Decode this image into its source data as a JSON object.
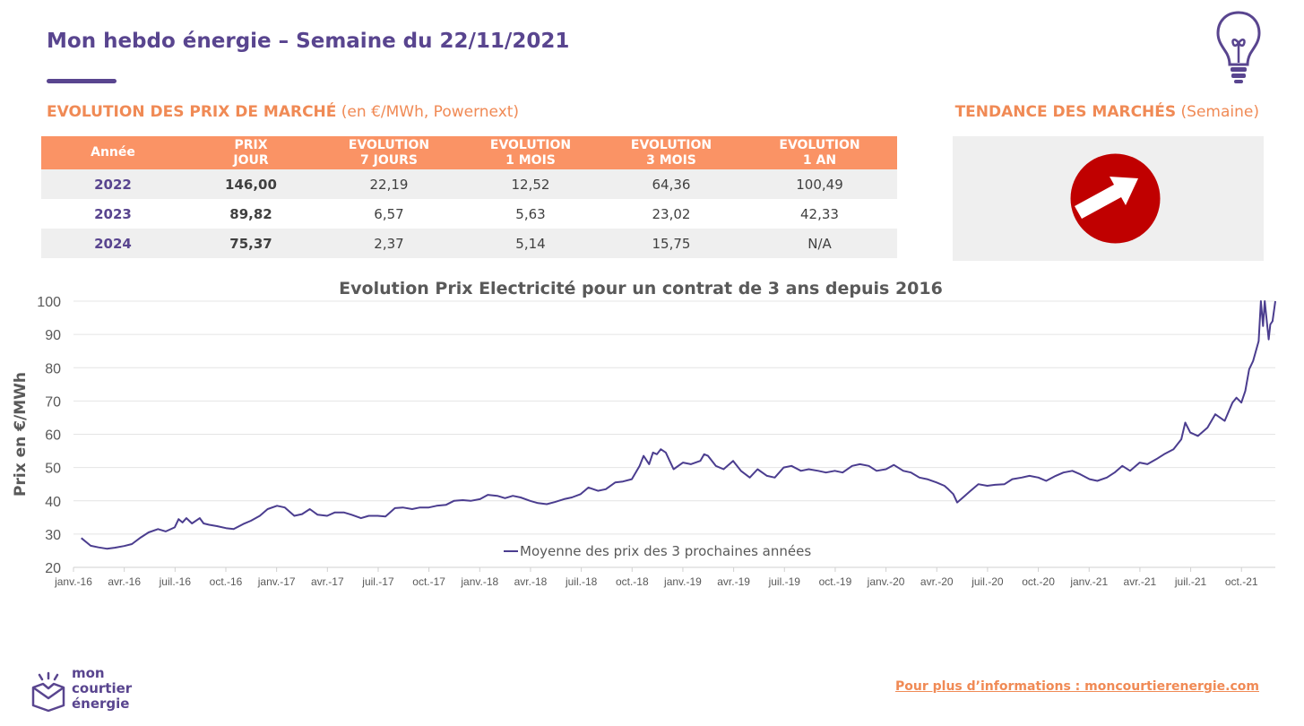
{
  "header": {
    "title": "Mon hebdo énergie – Semaine du 22/11/2021"
  },
  "prices_section": {
    "title": "EVOLUTION DES PRIX DE MARCHÉ",
    "subtitle": "(en €/MWh, Powernext)"
  },
  "trend_section": {
    "title": "TENDANCE DES MARCHÉS",
    "subtitle": "(Semaine)",
    "trend": "hausse",
    "icon": "arrow-up-right-icon",
    "icon_color": "#c00000"
  },
  "table": {
    "headers": [
      {
        "l1": "Année",
        "l2": ""
      },
      {
        "l1": "PRIX",
        "l2": "JOUR"
      },
      {
        "l1": "EVOLUTION",
        "l2": "7 JOURS"
      },
      {
        "l1": "EVOLUTION",
        "l2": "1 MOIS"
      },
      {
        "l1": "EVOLUTION",
        "l2": "3 MOIS"
      },
      {
        "l1": "EVOLUTION",
        "l2": "1 AN"
      }
    ],
    "rows": [
      [
        "2022",
        "146,00",
        "22,19",
        "12,52",
        "64,36",
        "100,49"
      ],
      [
        "2023",
        "89,82",
        "6,57",
        "5,63",
        "23,02",
        "42,33"
      ],
      [
        "2024",
        "75,37",
        "2,37",
        "5,14",
        "15,75",
        "N/A"
      ]
    ]
  },
  "footer": {
    "link_text": "Pour plus d’informations : moncourtierenergie.com"
  },
  "logo": {
    "line1": "mon",
    "line2": "courtier",
    "line3": "énergie"
  },
  "colors": {
    "brand_purple": "#59458f",
    "accent_orange": "#f08a55",
    "header_orange": "#fa9365",
    "line_purple": "#4b3d8f"
  },
  "chart_data": {
    "type": "line",
    "title": "Evolution Prix Electricité pour un contrat de 3 ans depuis 2016",
    "ylabel": "Prix en €/MWh",
    "xlabel": "",
    "ylim": [
      20,
      100
    ],
    "yticks": [
      20,
      30,
      40,
      50,
      60,
      70,
      80,
      90,
      100
    ],
    "grid": true,
    "legend": "bottom-center",
    "x_ticks": [
      "janv.-16",
      "avr.-16",
      "juil.-16",
      "oct.-16",
      "janv.-17",
      "avr.-17",
      "juil.-17",
      "oct.-17",
      "janv.-18",
      "avr.-18",
      "juil.-18",
      "oct.-18",
      "janv.-19",
      "avr.-19",
      "juil.-19",
      "oct.-19",
      "janv.-20",
      "avr.-20",
      "juil.-20",
      "oct.-20",
      "janv.-21",
      "avr.-21",
      "juil.-21",
      "oct.-21"
    ],
    "series": [
      {
        "name": "Moyenne des prix des 3 prochaines années",
        "color": "#4b3d8f",
        "points": [
          [
            "2016-01-15",
            28.8
          ],
          [
            "2016-02-01",
            26.5
          ],
          [
            "2016-02-15",
            26.0
          ],
          [
            "2016-03-01",
            25.6
          ],
          [
            "2016-03-15",
            25.9
          ],
          [
            "2016-04-01",
            26.4
          ],
          [
            "2016-04-15",
            27.0
          ],
          [
            "2016-05-01",
            29.0
          ],
          [
            "2016-05-15",
            30.5
          ],
          [
            "2016-06-01",
            31.5
          ],
          [
            "2016-06-15",
            30.8
          ],
          [
            "2016-07-01",
            32.0
          ],
          [
            "2016-07-08",
            34.5
          ],
          [
            "2016-07-15",
            33.5
          ],
          [
            "2016-07-22",
            34.8
          ],
          [
            "2016-08-01",
            33.2
          ],
          [
            "2016-08-15",
            34.8
          ],
          [
            "2016-08-22",
            33.2
          ],
          [
            "2016-09-01",
            32.8
          ],
          [
            "2016-09-15",
            32.4
          ],
          [
            "2016-10-01",
            31.8
          ],
          [
            "2016-10-15",
            31.5
          ],
          [
            "2016-11-01",
            33.0
          ],
          [
            "2016-11-15",
            34.0
          ],
          [
            "2016-12-01",
            35.5
          ],
          [
            "2016-12-15",
            37.5
          ],
          [
            "2017-01-01",
            38.5
          ],
          [
            "2017-01-15",
            38.0
          ],
          [
            "2017-02-01",
            35.5
          ],
          [
            "2017-02-15",
            36.0
          ],
          [
            "2017-03-01",
            37.5
          ],
          [
            "2017-03-15",
            35.8
          ],
          [
            "2017-04-01",
            35.5
          ],
          [
            "2017-04-15",
            36.5
          ],
          [
            "2017-05-01",
            36.5
          ],
          [
            "2017-05-15",
            35.8
          ],
          [
            "2017-06-01",
            34.8
          ],
          [
            "2017-06-15",
            35.5
          ],
          [
            "2017-07-01",
            35.5
          ],
          [
            "2017-07-15",
            35.3
          ],
          [
            "2017-08-01",
            37.8
          ],
          [
            "2017-08-15",
            38.0
          ],
          [
            "2017-09-01",
            37.5
          ],
          [
            "2017-09-15",
            38.0
          ],
          [
            "2017-10-01",
            38.0
          ],
          [
            "2017-10-15",
            38.5
          ],
          [
            "2017-11-01",
            38.8
          ],
          [
            "2017-11-15",
            40.0
          ],
          [
            "2017-12-01",
            40.2
          ],
          [
            "2017-12-15",
            40.0
          ],
          [
            "2018-01-01",
            40.5
          ],
          [
            "2018-01-15",
            41.8
          ],
          [
            "2018-02-01",
            41.5
          ],
          [
            "2018-02-15",
            40.8
          ],
          [
            "2018-03-01",
            41.5
          ],
          [
            "2018-03-15",
            41.0
          ],
          [
            "2018-04-01",
            40.0
          ],
          [
            "2018-04-15",
            39.3
          ],
          [
            "2018-05-01",
            39.0
          ],
          [
            "2018-05-15",
            39.6
          ],
          [
            "2018-06-01",
            40.5
          ],
          [
            "2018-06-15",
            41.0
          ],
          [
            "2018-07-01",
            42.0
          ],
          [
            "2018-07-15",
            44.0
          ],
          [
            "2018-08-01",
            43.0
          ],
          [
            "2018-08-15",
            43.5
          ],
          [
            "2018-09-01",
            45.5
          ],
          [
            "2018-09-15",
            45.8
          ],
          [
            "2018-10-01",
            46.5
          ],
          [
            "2018-10-15",
            50.5
          ],
          [
            "2018-10-22",
            53.5
          ],
          [
            "2018-11-01",
            51.0
          ],
          [
            "2018-11-08",
            54.5
          ],
          [
            "2018-11-15",
            54.0
          ],
          [
            "2018-11-22",
            55.5
          ],
          [
            "2018-12-01",
            54.5
          ],
          [
            "2018-12-08",
            52.0
          ],
          [
            "2018-12-15",
            49.5
          ],
          [
            "2019-01-01",
            51.5
          ],
          [
            "2019-01-15",
            51.0
          ],
          [
            "2019-02-01",
            52.0
          ],
          [
            "2019-02-08",
            54.0
          ],
          [
            "2019-02-15",
            53.5
          ],
          [
            "2019-03-01",
            50.5
          ],
          [
            "2019-03-15",
            49.5
          ],
          [
            "2019-04-01",
            52.0
          ],
          [
            "2019-04-15",
            49.0
          ],
          [
            "2019-05-01",
            47.0
          ],
          [
            "2019-05-15",
            49.5
          ],
          [
            "2019-06-01",
            47.5
          ],
          [
            "2019-06-15",
            47.0
          ],
          [
            "2019-07-01",
            50.0
          ],
          [
            "2019-07-15",
            50.5
          ],
          [
            "2019-08-01",
            49.0
          ],
          [
            "2019-08-15",
            49.5
          ],
          [
            "2019-09-01",
            49.0
          ],
          [
            "2019-09-15",
            48.5
          ],
          [
            "2019-10-01",
            49.0
          ],
          [
            "2019-10-15",
            48.5
          ],
          [
            "2019-11-01",
            50.5
          ],
          [
            "2019-11-15",
            51.0
          ],
          [
            "2019-12-01",
            50.5
          ],
          [
            "2019-12-15",
            49.0
          ],
          [
            "2020-01-01",
            49.5
          ],
          [
            "2020-01-15",
            50.8
          ],
          [
            "2020-02-01",
            49.0
          ],
          [
            "2020-02-15",
            48.5
          ],
          [
            "2020-03-01",
            47.0
          ],
          [
            "2020-03-15",
            46.5
          ],
          [
            "2020-04-01",
            45.5
          ],
          [
            "2020-04-15",
            44.5
          ],
          [
            "2020-04-22",
            43.5
          ],
          [
            "2020-05-01",
            42.0
          ],
          [
            "2020-05-08",
            39.5
          ],
          [
            "2020-05-15",
            40.5
          ],
          [
            "2020-06-01",
            43.0
          ],
          [
            "2020-06-15",
            45.0
          ],
          [
            "2020-07-01",
            44.5
          ],
          [
            "2020-07-15",
            44.8
          ],
          [
            "2020-08-01",
            45.0
          ],
          [
            "2020-08-15",
            46.5
          ],
          [
            "2020-09-01",
            47.0
          ],
          [
            "2020-09-15",
            47.5
          ],
          [
            "2020-10-01",
            47.0
          ],
          [
            "2020-10-15",
            46.0
          ],
          [
            "2020-11-01",
            47.5
          ],
          [
            "2020-11-15",
            48.5
          ],
          [
            "2020-12-01",
            49.0
          ],
          [
            "2020-12-15",
            48.0
          ],
          [
            "2021-01-01",
            46.5
          ],
          [
            "2021-01-15",
            46.0
          ],
          [
            "2021-02-01",
            47.0
          ],
          [
            "2021-02-15",
            48.5
          ],
          [
            "2021-03-01",
            50.5
          ],
          [
            "2021-03-15",
            49.0
          ],
          [
            "2021-04-01",
            51.5
          ],
          [
            "2021-04-15",
            51.0
          ],
          [
            "2021-05-01",
            52.5
          ],
          [
            "2021-05-15",
            54.0
          ],
          [
            "2021-06-01",
            55.5
          ],
          [
            "2021-06-15",
            58.5
          ],
          [
            "2021-06-22",
            63.5
          ],
          [
            "2021-07-01",
            60.5
          ],
          [
            "2021-07-15",
            59.5
          ],
          [
            "2021-08-01",
            62.0
          ],
          [
            "2021-08-15",
            66.0
          ],
          [
            "2021-09-01",
            64.0
          ],
          [
            "2021-09-15",
            69.5
          ],
          [
            "2021-09-22",
            71.0
          ],
          [
            "2021-10-01",
            69.5
          ],
          [
            "2021-10-08",
            73.0
          ],
          [
            "2021-10-15",
            79.5
          ],
          [
            "2021-10-22",
            82.0
          ],
          [
            "2021-11-01",
            88.0
          ],
          [
            "2021-11-05",
            100.0
          ],
          [
            "2021-11-09",
            92.5
          ],
          [
            "2021-11-12",
            100.0
          ],
          [
            "2021-11-15",
            95.0
          ],
          [
            "2021-11-19",
            88.5
          ],
          [
            "2021-11-22",
            93.0
          ],
          [
            "2021-11-26",
            94.0
          ],
          [
            "2021-12-01",
            100.0
          ]
        ]
      }
    ]
  }
}
